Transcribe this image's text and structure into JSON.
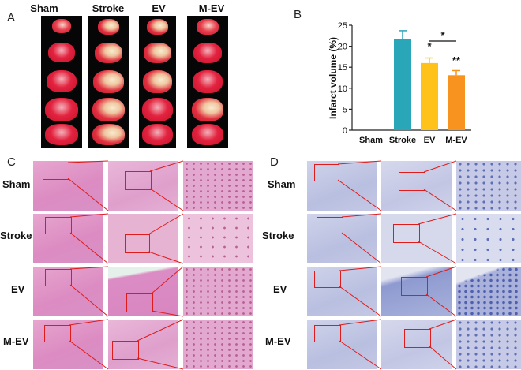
{
  "figure": {
    "panels": {
      "a": "A",
      "b": "B",
      "c": "C",
      "d": "D"
    },
    "groups": [
      "Sham",
      "Stroke",
      "EV",
      "M-EV"
    ]
  },
  "chart_data": {
    "type": "bar",
    "categories": [
      "Sham",
      "Stroke",
      "EV",
      "M-EV"
    ],
    "values": [
      0,
      21.8,
      16.0,
      13.1
    ],
    "errors": [
      0,
      1.9,
      1.2,
      1.1
    ],
    "colors": [
      "#2aa6b9",
      "#2aa6b9",
      "#ffc21a",
      "#f7931e"
    ],
    "ylabel": "Infarct volume (%)",
    "ylim": [
      0,
      25
    ],
    "yticks": [
      "0",
      "5",
      "10",
      "15",
      "20",
      "25"
    ],
    "annotations": {
      "ev": "*",
      "mev": "**",
      "bracket": "*"
    }
  }
}
